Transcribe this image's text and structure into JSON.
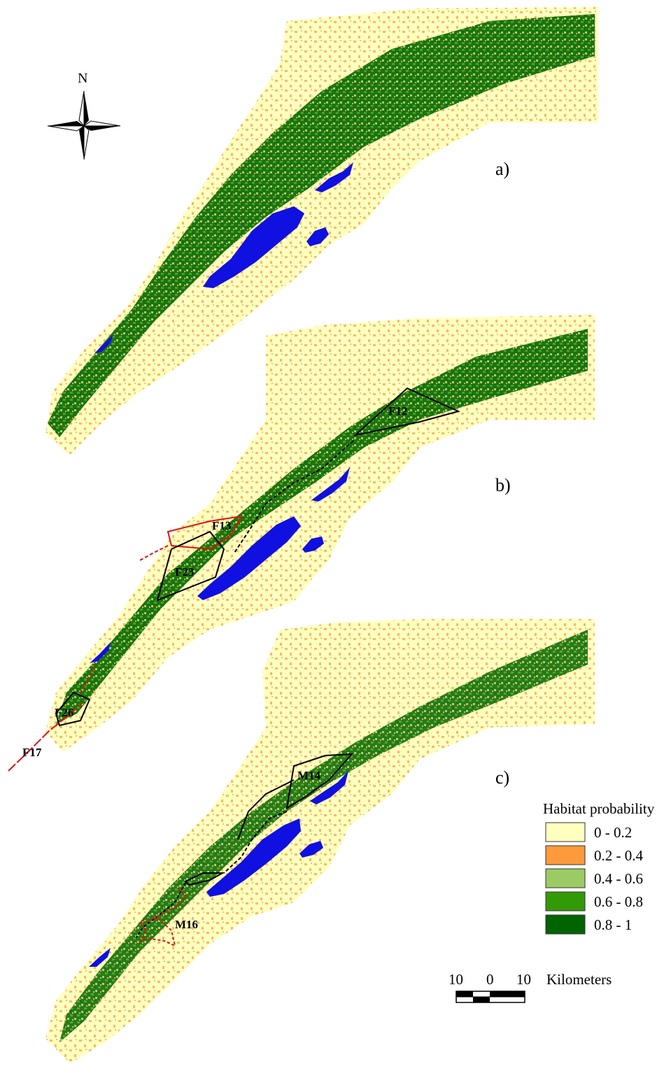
{
  "north_arrow": {
    "label": "N",
    "icon": "north-arrow-icon"
  },
  "panels": [
    {
      "label": "a)"
    },
    {
      "label": "b)"
    },
    {
      "label": "c)"
    }
  ],
  "zones": {
    "b": [
      "F12",
      "F13",
      "F23",
      "F26",
      "F17"
    ],
    "c": [
      "M14",
      "M16"
    ]
  },
  "legend": {
    "title": "Habitat probability",
    "classes": [
      {
        "label": "0 - 0.2",
        "color": "#ffffc0"
      },
      {
        "label": "0.2 - 0.4",
        "color": "#fc9a3c"
      },
      {
        "label": "0.4 - 0.6",
        "color": "#9ccb66"
      },
      {
        "label": "0.6 - 0.8",
        "color": "#339a07"
      },
      {
        "label": "0.8 - 1",
        "color": "#006400"
      }
    ]
  },
  "scale_bar": {
    "ticks": [
      "10",
      "0",
      "10"
    ],
    "unit": "Kilometers"
  },
  "colors": {
    "water": "#1010e0",
    "route_black": "#000000",
    "route_red": "#e01010"
  }
}
